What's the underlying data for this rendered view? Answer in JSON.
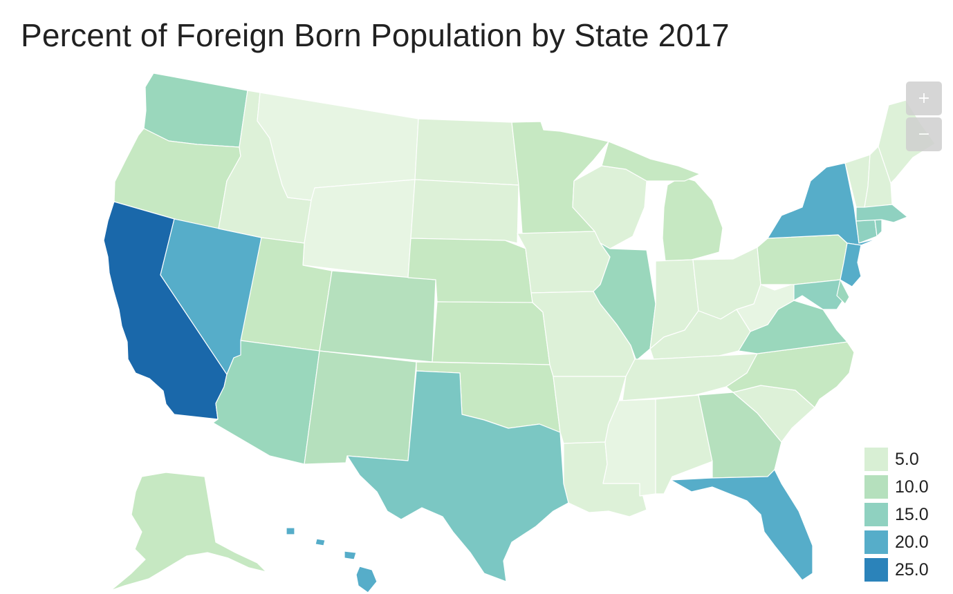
{
  "title": "Percent of Foreign Born Population by State 2017",
  "zoom_controls": {
    "zoom_in": "+",
    "zoom_out": "−"
  },
  "legend": [
    {
      "label": "5.0",
      "color": "#d8efd4"
    },
    {
      "label": "10.0",
      "color": "#b5e0bd"
    },
    {
      "label": "15.0",
      "color": "#8fd1c0"
    },
    {
      "label": "20.0",
      "color": "#56adc9"
    },
    {
      "label": "25.0",
      "color": "#2b83ba"
    }
  ],
  "colors": {
    "lightest": "#e7f5e3",
    "very_light": "#ddf1d8",
    "light": "#c6e8c2",
    "green": "#b5e0bd",
    "mint": "#9ad7bc",
    "teal_light": "#8fd1c0",
    "teal": "#7bc7c3",
    "blue_mid": "#56adc9",
    "blue_dark": "#1a68aa"
  },
  "states": [
    {
      "id": "WA",
      "class": "mint"
    },
    {
      "id": "OR",
      "class": "light"
    },
    {
      "id": "CA",
      "class": "blue_dark"
    },
    {
      "id": "NV",
      "class": "blue_mid"
    },
    {
      "id": "ID",
      "class": "very_light"
    },
    {
      "id": "MT",
      "class": "lightest"
    },
    {
      "id": "WY",
      "class": "lightest"
    },
    {
      "id": "UT",
      "class": "light"
    },
    {
      "id": "AZ",
      "class": "mint"
    },
    {
      "id": "CO",
      "class": "green"
    },
    {
      "id": "NM",
      "class": "green"
    },
    {
      "id": "ND",
      "class": "very_light"
    },
    {
      "id": "SD",
      "class": "very_light"
    },
    {
      "id": "NE",
      "class": "light"
    },
    {
      "id": "KS",
      "class": "light"
    },
    {
      "id": "OK",
      "class": "light"
    },
    {
      "id": "TX",
      "class": "teal"
    },
    {
      "id": "MN",
      "class": "light"
    },
    {
      "id": "IA",
      "class": "very_light"
    },
    {
      "id": "MO",
      "class": "very_light"
    },
    {
      "id": "AR",
      "class": "very_light"
    },
    {
      "id": "LA",
      "class": "very_light"
    },
    {
      "id": "WI",
      "class": "very_light"
    },
    {
      "id": "IL",
      "class": "mint"
    },
    {
      "id": "MI",
      "class": "light"
    },
    {
      "id": "IN",
      "class": "very_light"
    },
    {
      "id": "OH",
      "class": "very_light"
    },
    {
      "id": "KY",
      "class": "very_light"
    },
    {
      "id": "TN",
      "class": "very_light"
    },
    {
      "id": "MS",
      "class": "lightest"
    },
    {
      "id": "AL",
      "class": "very_light"
    },
    {
      "id": "GA",
      "class": "green"
    },
    {
      "id": "FL",
      "class": "blue_mid"
    },
    {
      "id": "SC",
      "class": "very_light"
    },
    {
      "id": "NC",
      "class": "light"
    },
    {
      "id": "VA",
      "class": "mint"
    },
    {
      "id": "WV",
      "class": "lightest"
    },
    {
      "id": "PA",
      "class": "light"
    },
    {
      "id": "NY",
      "class": "blue_mid"
    },
    {
      "id": "NJ",
      "class": "blue_mid"
    },
    {
      "id": "MD",
      "class": "teal_light"
    },
    {
      "id": "DE",
      "class": "mint"
    },
    {
      "id": "CT",
      "class": "teal_light"
    },
    {
      "id": "RI",
      "class": "teal_light"
    },
    {
      "id": "MA",
      "class": "teal_light"
    },
    {
      "id": "VT",
      "class": "very_light"
    },
    {
      "id": "NH",
      "class": "very_light"
    },
    {
      "id": "ME",
      "class": "very_light"
    },
    {
      "id": "AK",
      "class": "light"
    },
    {
      "id": "HI",
      "class": "blue_mid"
    }
  ]
}
